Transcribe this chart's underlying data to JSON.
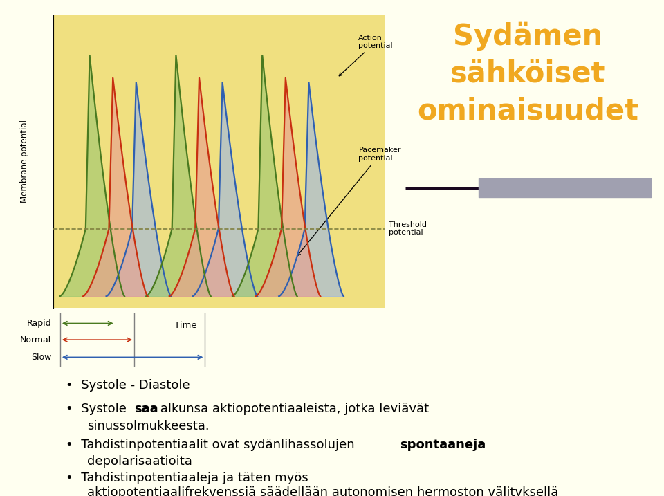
{
  "bg_color": "#fffff0",
  "chart_bg": "#f0e080",
  "title_text": "Sydämen\nsähköiset\nominaisuudet",
  "title_color": "#f0a820",
  "title_fontsize": 30,
  "bullet_fontsize": 13,
  "membrane_label": "Membrane potential",
  "time_label": "Time",
  "action_potential_label": "Action\npotential",
  "pacemaker_label": "Pacemaker\npotential",
  "threshold_label": "Threshold\npotential",
  "rapid_label": "Rapid",
  "normal_label": "Normal",
  "slow_label": "Slow",
  "green_color": "#4a7a20",
  "red_color": "#c83010",
  "blue_color": "#3060b0",
  "green_fill": "#a0c870",
  "red_fill": "#e8a090",
  "blue_fill": "#a0b8e0",
  "dashed_color": "#808040",
  "left_bar_color": "#8a8060",
  "left_bar_dark": "#2a1830",
  "separator_dark": "#1a0820",
  "separator_light": "#a0a0b0"
}
